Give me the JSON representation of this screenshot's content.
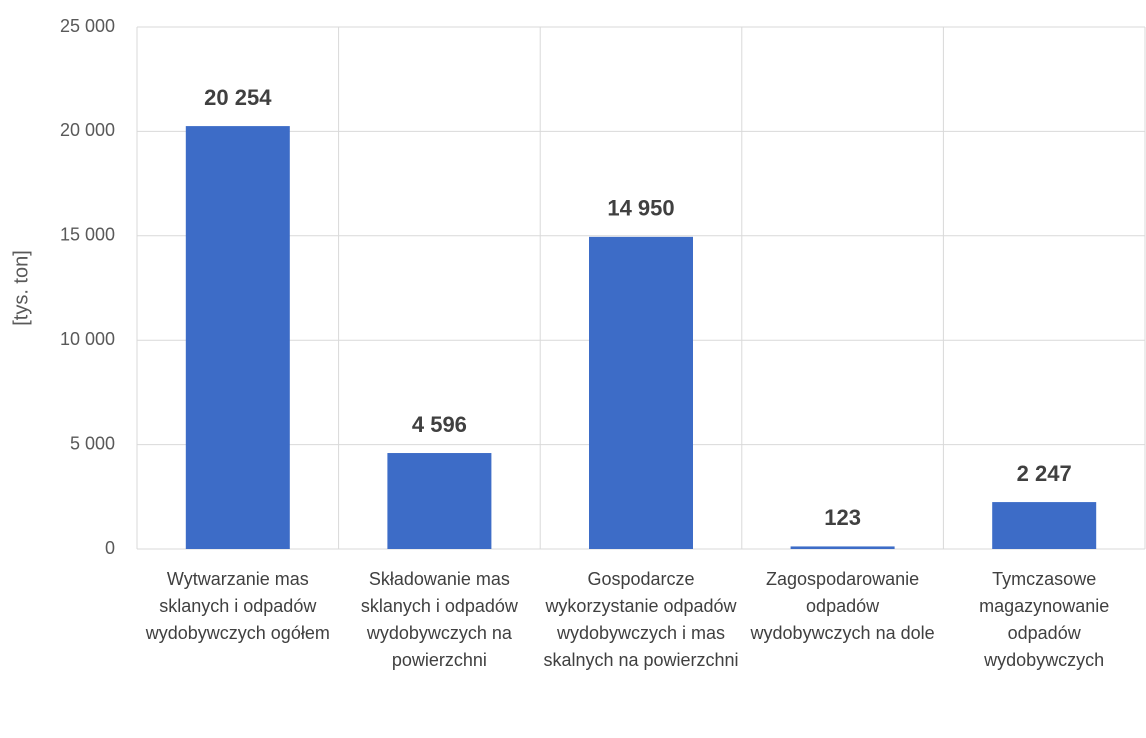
{
  "chart_data": {
    "type": "bar",
    "y_label": "[tys. ton]",
    "categories": [
      "Wytwarzanie mas sklanych i odpadów wydobywczych ogółem",
      "Składowanie mas sklanych i odpadów wydobywczych na powierzchni",
      "Gospodarcze wykorzystanie odpadów wydobywczych i mas skalnych na powierzchni",
      "Zagospodarowanie odpadów wydobywczych na dole",
      "Tymczasowe magazynowanie odpadów wydobywczych"
    ],
    "values": [
      20254,
      4596,
      14950,
      123,
      2247
    ],
    "value_labels": [
      "20 254",
      "4 596",
      "14 950",
      "123",
      "2 247"
    ],
    "color": "#3d6cc7",
    "ylim": [
      0,
      25000
    ],
    "yticks": [
      0,
      {
        "value": 5000,
        "label": "5 000"
      },
      {
        "value": 10000,
        "label": "10 000"
      },
      {
        "value": 15000,
        "label": "15 000"
      },
      {
        "value": 20000,
        "label": "20 000"
      },
      {
        "value": 25000,
        "label": "25 000"
      }
    ],
    "grid": true
  }
}
